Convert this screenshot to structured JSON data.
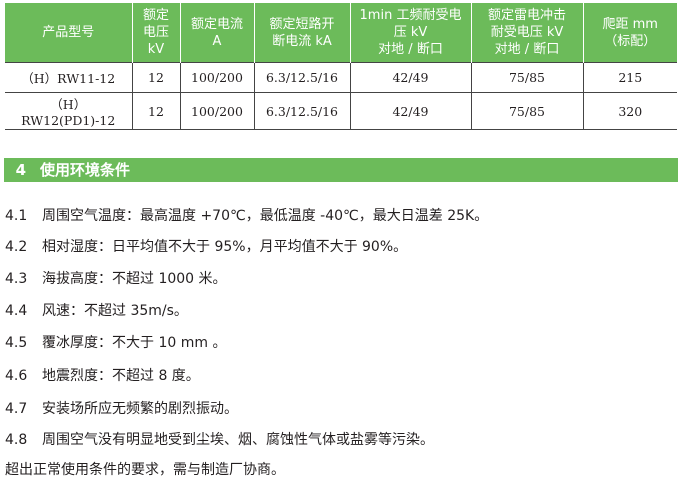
{
  "table": {
    "headers": [
      "产品型号",
      "额定电压kV",
      "额定电流A",
      "额定短路开断电流 kA",
      "1min 工频耐受电压 kV 对地 / 断口",
      "额定雷电冲击耐受电压 kV 对地 / 断口",
      "爬距 mm（标配）"
    ],
    "header_lines": [
      [
        "产品型号"
      ],
      [
        "额定",
        "电压",
        "kV"
      ],
      [
        "额定电流",
        "A"
      ],
      [
        "额定短路开",
        "断电流 kA"
      ],
      [
        "1min 工频耐受电",
        "压 kV",
        "对地 / 断口"
      ],
      [
        "额定雷电冲击",
        "耐受电压 kV",
        "对地 / 断口"
      ],
      [
        "爬距 mm",
        "（标配）"
      ]
    ],
    "rows": [
      [
        "（H）RW11-12",
        "12",
        "100/200",
        "6.3/12.5/16",
        "42/49",
        "75/85",
        "215"
      ],
      [
        "（H）RW12(PD1)-12",
        "12",
        "100/200",
        "6.3/12.5/16",
        "42/49",
        "75/85",
        "320"
      ]
    ]
  },
  "section": {
    "number": "4",
    "title": "使用环境条件"
  },
  "items": [
    {
      "n": "4.1",
      "text": "周围空气温度：最高温度 +70℃，最低温度 -40℃，最大日温差 25K。"
    },
    {
      "n": "4.2",
      "text": "相对湿度：日平均值不大于 95%，月平均值不大于 90%。"
    },
    {
      "n": "4.3",
      "text": "海拔高度：不超过 1000 米。"
    },
    {
      "n": "4.4",
      "text": "风速：不超过 35m/s。"
    },
    {
      "n": "4.5",
      "text": "覆冰厚度：不大于 10 mm 。"
    },
    {
      "n": "4.6",
      "text": "地震烈度：不超过 8 度。"
    },
    {
      "n": "4.7",
      "text": "安装场所应无频繁的剧烈振动。"
    },
    {
      "n": "4.8",
      "text": "周围空气没有明显地受到尘埃、烟、腐蚀性气体或盐雾等污染。"
    }
  ],
  "note": "超出正常使用条件的要求，需与制造厂协商。",
  "colors": {
    "accent": "#6cbb5a"
  }
}
